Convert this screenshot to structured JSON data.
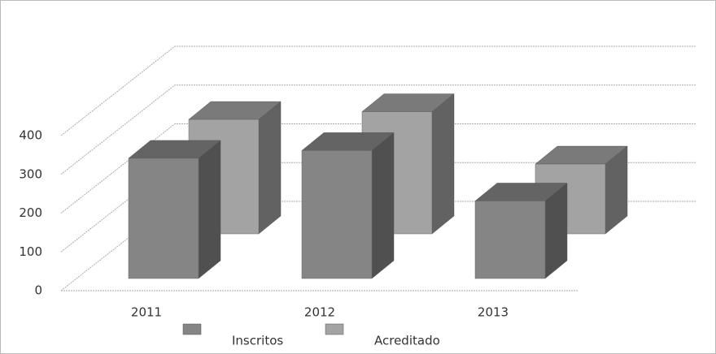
{
  "chart_data": {
    "type": "bar3d",
    "categories": [
      "2011",
      "2012",
      "2013"
    ],
    "series": [
      {
        "name": "Inscritos",
        "color": "#858585",
        "values": [
          310,
          330,
          200
        ]
      },
      {
        "name": "Acreditado",
        "color": "#a3a3a3",
        "values": [
          295,
          315,
          180
        ]
      }
    ],
    "ylim": [
      0,
      400
    ],
    "yticks": [
      0,
      100,
      200,
      300,
      400
    ],
    "grid": true,
    "legend": "bottom"
  }
}
